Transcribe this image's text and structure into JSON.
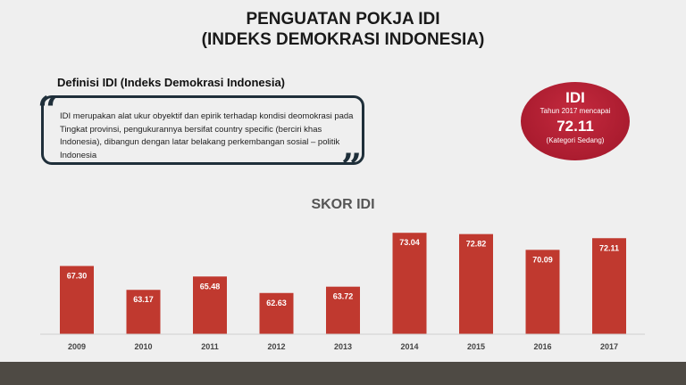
{
  "header": {
    "title_line1": "PENGUATAN POKJA IDI",
    "title_line2": "(INDEKS DEMOKRASI INDONESIA)"
  },
  "definition": {
    "heading": "Definisi IDI (Indeks Demokrasi Indonesia)",
    "text": "IDI merupakan alat ukur obyektif dan epirik terhadap kondisi deomokrasi pada Tingkat provinsi, pengukurannya bersifat country specific (berciri khas Indonesia), dibangun dengan latar belakang perkembangan sosial – politik Indonesia",
    "open_quote": "“",
    "close_quote": "”"
  },
  "badge": {
    "title": "IDI",
    "subtitle": "Tahun 2017 mencapai",
    "value": "72.11",
    "category": "(Kategori Sedang)"
  },
  "colors": {
    "bar": "#c0392f",
    "badge": "#b01e32",
    "footer": "#4e4a44"
  },
  "chart_data": {
    "type": "bar",
    "title": "SKOR IDI",
    "categories": [
      "2009",
      "2010",
      "2011",
      "2012",
      "2013",
      "2014",
      "2015",
      "2016",
      "2017"
    ],
    "values": [
      67.3,
      63.17,
      65.48,
      62.63,
      63.72,
      73.04,
      72.82,
      70.09,
      72.11
    ],
    "value_labels": [
      "67.30",
      "63.17",
      "65.48",
      "62.63",
      "63.72",
      "73.04",
      "72.82",
      "70.09",
      "72.11"
    ],
    "ylim": [
      55.5,
      74
    ],
    "grid": false,
    "legend": "none"
  }
}
